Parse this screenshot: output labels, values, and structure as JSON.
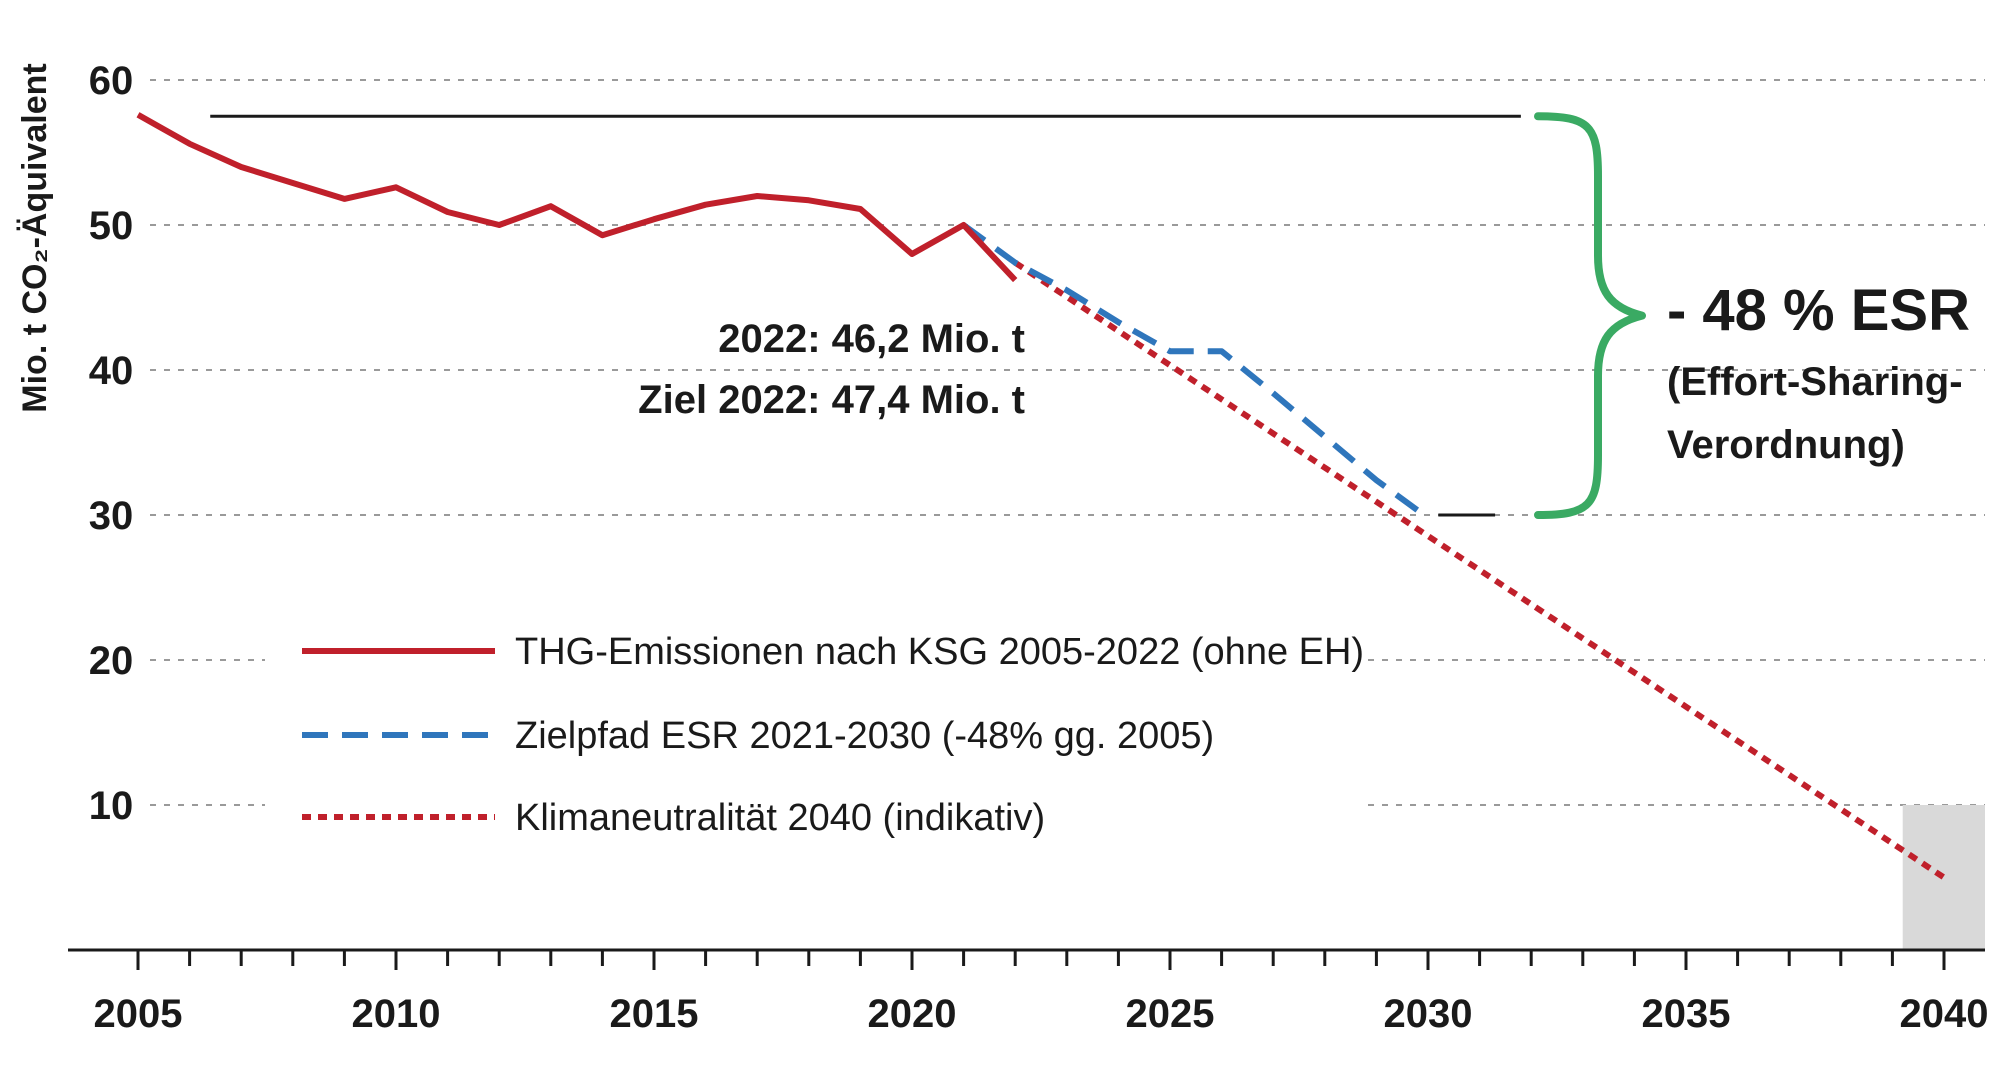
{
  "chart_data": {
    "type": "line",
    "ylabel": "Mio. t CO₂-Äquivalent",
    "xlabel": "",
    "xlim": [
      2004,
      2041
    ],
    "ylim": [
      0,
      60
    ],
    "x_ticks": [
      2005,
      2010,
      2015,
      2020,
      2025,
      2030,
      2035,
      2040
    ],
    "y_ticks": [
      10,
      20,
      30,
      40,
      50,
      60
    ],
    "grid": true,
    "series": [
      {
        "name": "THG-Emissionen nach KSG 2005-2022 (ohne EH)",
        "style": "solid",
        "color": "#c0202b",
        "x": [
          2005,
          2006,
          2007,
          2008,
          2009,
          2010,
          2011,
          2012,
          2013,
          2014,
          2015,
          2016,
          2017,
          2018,
          2019,
          2020,
          2021,
          2022
        ],
        "y": [
          57.6,
          55.6,
          54.0,
          52.9,
          51.8,
          52.6,
          50.9,
          50.0,
          51.3,
          49.3,
          50.4,
          51.4,
          52.0,
          51.7,
          51.1,
          48.0,
          50.0,
          46.2
        ]
      },
      {
        "name": "Zielpfad ESR 2021-2030 (-48% gg. 2005)",
        "style": "dashed",
        "color": "#2f76bc",
        "x": [
          2021,
          2022,
          2023,
          2024,
          2025,
          2026,
          2027,
          2028,
          2029,
          2030
        ],
        "y": [
          50.0,
          47.4,
          45.5,
          43.3,
          41.3,
          41.3,
          38.4,
          35.4,
          32.4,
          29.8
        ]
      },
      {
        "name": "Klimaneutralität 2040 (indikativ)",
        "style": "dotted",
        "color": "#c0202b",
        "x": [
          2022,
          2040
        ],
        "y": [
          47.4,
          5.0
        ]
      }
    ],
    "reference_lines": [
      {
        "y": 57.5,
        "x_from": 2006.4,
        "x_to": 2031.8,
        "color": "#1a1a1a"
      },
      {
        "y": 30.0,
        "x_from": 2030.2,
        "x_to": 2031.3,
        "color": "#1a1a1a"
      }
    ],
    "shaded_region": {
      "x_from": 2039.2,
      "x_to": 2041,
      "y_from": 0,
      "y_to": 10,
      "color": "#d9d9d9"
    },
    "annotations": {
      "value_2022": "2022: 46,2 Mio. t",
      "target_2022": "Ziel 2022: 47,4 Mio. t",
      "brace_label": "- 48 % ESR",
      "brace_sub_1": "(Effort-Sharing-",
      "brace_sub_2": "Verordnung)"
    },
    "brace": {
      "y_from": 30.0,
      "y_to": 57.5,
      "color": "#3aaa63"
    },
    "legend_position": "center-left"
  }
}
